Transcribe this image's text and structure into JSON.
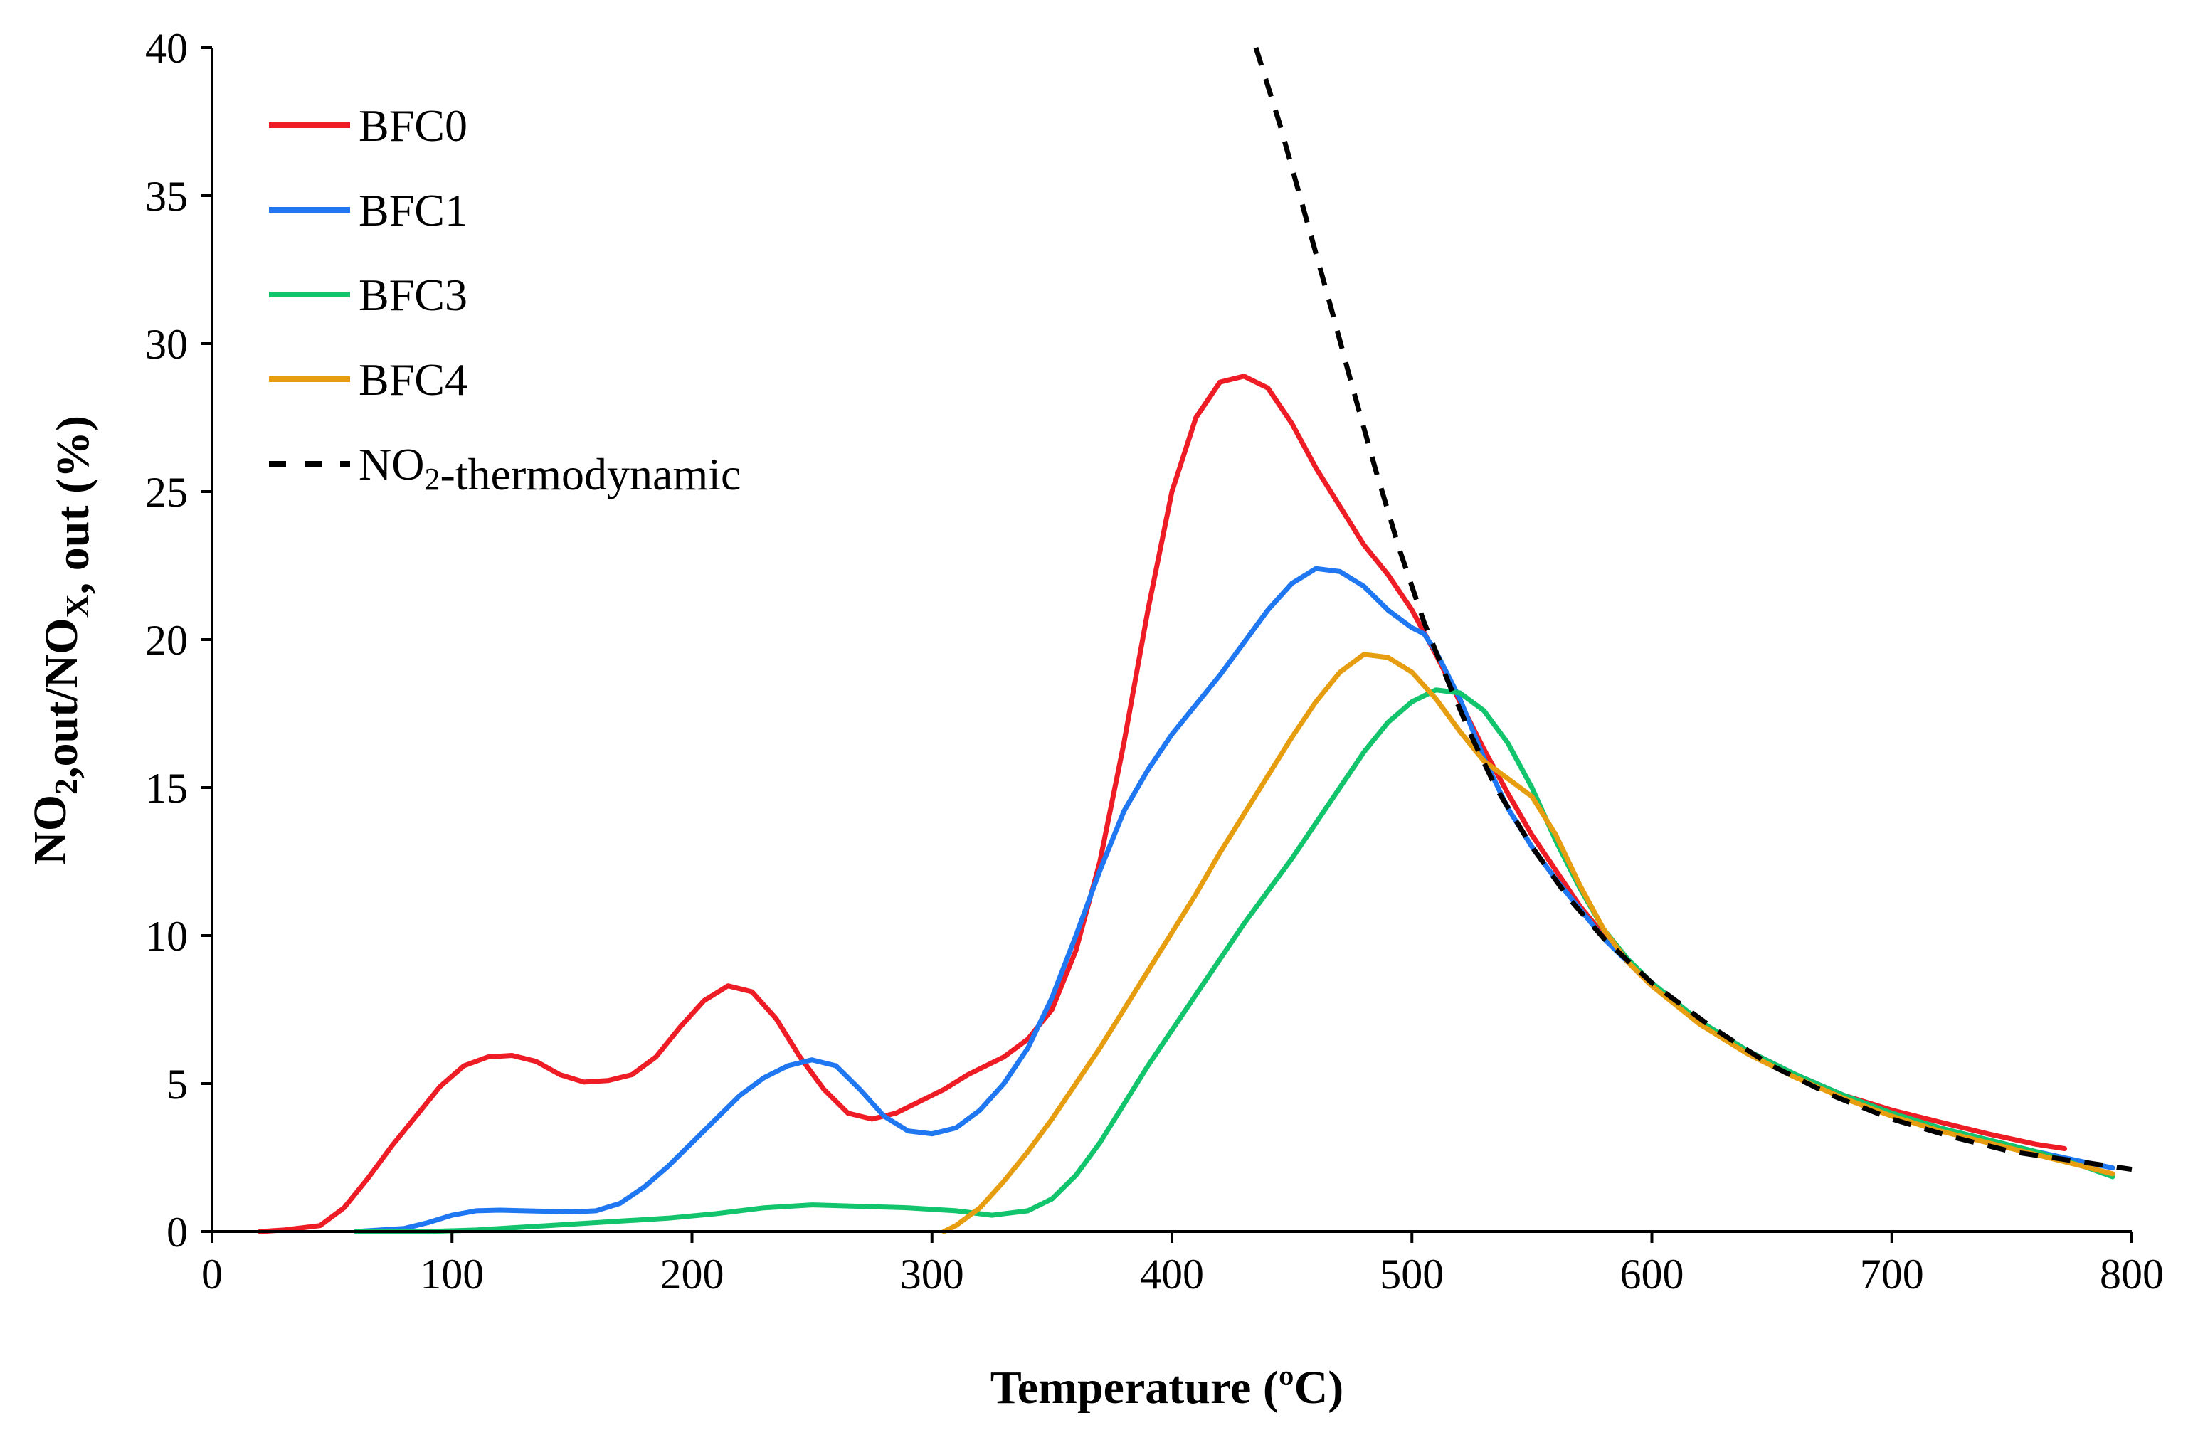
{
  "chart_data": {
    "type": "line",
    "title": "",
    "xlabel": "Temperature (ºC)",
    "ylabel": {
      "parts": [
        {
          "text": "NO",
          "sub": false
        },
        {
          "text": "2",
          "sub": true
        },
        {
          "text": ",out/NO",
          "sub": false
        },
        {
          "text": "X",
          "sub": true
        },
        {
          "text": ", out (%)",
          "sub": false
        }
      ]
    },
    "xlim": [
      0,
      800
    ],
    "ylim": [
      0,
      40
    ],
    "xticks": [
      "0",
      "100",
      "200",
      "300",
      "400",
      "500",
      "600",
      "700",
      "800"
    ],
    "yticks": [
      "0",
      "5",
      "10",
      "15",
      "20",
      "25",
      "30",
      "35",
      "40"
    ],
    "grid": false,
    "legend_position": "top-left",
    "series": [
      {
        "name": "BFC0",
        "label_parts": [
          {
            "text": "BFC0",
            "sub": false
          }
        ],
        "color": "#ee1c25",
        "dash": "solid",
        "points": [
          [
            20,
            0
          ],
          [
            30,
            0.05
          ],
          [
            45,
            0.2
          ],
          [
            55,
            0.8
          ],
          [
            65,
            1.8
          ],
          [
            75,
            2.9
          ],
          [
            85,
            3.9
          ],
          [
            95,
            4.9
          ],
          [
            105,
            5.6
          ],
          [
            115,
            5.9
          ],
          [
            125,
            5.95
          ],
          [
            135,
            5.75
          ],
          [
            145,
            5.3
          ],
          [
            155,
            5.05
          ],
          [
            165,
            5.1
          ],
          [
            175,
            5.3
          ],
          [
            185,
            5.9
          ],
          [
            195,
            6.9
          ],
          [
            205,
            7.8
          ],
          [
            215,
            8.3
          ],
          [
            225,
            8.1
          ],
          [
            235,
            7.2
          ],
          [
            245,
            5.9
          ],
          [
            255,
            4.8
          ],
          [
            265,
            4.0
          ],
          [
            275,
            3.8
          ],
          [
            285,
            4.0
          ],
          [
            295,
            4.4
          ],
          [
            305,
            4.8
          ],
          [
            315,
            5.3
          ],
          [
            330,
            5.9
          ],
          [
            340,
            6.5
          ],
          [
            350,
            7.5
          ],
          [
            360,
            9.5
          ],
          [
            370,
            12.5
          ],
          [
            380,
            16.5
          ],
          [
            390,
            21.0
          ],
          [
            400,
            25.0
          ],
          [
            410,
            27.5
          ],
          [
            420,
            28.7
          ],
          [
            430,
            28.9
          ],
          [
            440,
            28.5
          ],
          [
            450,
            27.3
          ],
          [
            460,
            25.8
          ],
          [
            470,
            24.5
          ],
          [
            480,
            23.2
          ],
          [
            490,
            22.2
          ],
          [
            500,
            21.0
          ],
          [
            510,
            19.5
          ],
          [
            520,
            17.9
          ],
          [
            530,
            16.3
          ],
          [
            540,
            14.8
          ],
          [
            550,
            13.4
          ],
          [
            560,
            12.2
          ],
          [
            570,
            11.0
          ],
          [
            580,
            10.0
          ],
          [
            590,
            9.1
          ],
          [
            600,
            8.3
          ],
          [
            620,
            7.1
          ],
          [
            640,
            6.1
          ],
          [
            660,
            5.3
          ],
          [
            680,
            4.6
          ],
          [
            700,
            4.1
          ],
          [
            720,
            3.7
          ],
          [
            740,
            3.3
          ],
          [
            760,
            2.95
          ],
          [
            772,
            2.8
          ]
        ]
      },
      {
        "name": "BFC1",
        "label_parts": [
          {
            "text": "BFC1",
            "sub": false
          }
        ],
        "color": "#1f77f2",
        "dash": "solid",
        "points": [
          [
            60,
            0
          ],
          [
            80,
            0.1
          ],
          [
            90,
            0.3
          ],
          [
            100,
            0.55
          ],
          [
            110,
            0.7
          ],
          [
            120,
            0.72
          ],
          [
            130,
            0.7
          ],
          [
            140,
            0.68
          ],
          [
            150,
            0.66
          ],
          [
            160,
            0.7
          ],
          [
            170,
            0.95
          ],
          [
            180,
            1.5
          ],
          [
            190,
            2.2
          ],
          [
            200,
            3.0
          ],
          [
            210,
            3.8
          ],
          [
            220,
            4.6
          ],
          [
            230,
            5.2
          ],
          [
            240,
            5.6
          ],
          [
            250,
            5.8
          ],
          [
            260,
            5.6
          ],
          [
            270,
            4.8
          ],
          [
            280,
            3.9
          ],
          [
            290,
            3.4
          ],
          [
            300,
            3.3
          ],
          [
            310,
            3.5
          ],
          [
            320,
            4.1
          ],
          [
            330,
            5.0
          ],
          [
            340,
            6.2
          ],
          [
            350,
            7.9
          ],
          [
            360,
            10.0
          ],
          [
            370,
            12.2
          ],
          [
            380,
            14.2
          ],
          [
            390,
            15.6
          ],
          [
            400,
            16.8
          ],
          [
            410,
            17.8
          ],
          [
            420,
            18.8
          ],
          [
            430,
            19.9
          ],
          [
            440,
            21.0
          ],
          [
            450,
            21.9
          ],
          [
            460,
            22.4
          ],
          [
            470,
            22.3
          ],
          [
            480,
            21.8
          ],
          [
            490,
            21.0
          ],
          [
            500,
            20.4
          ],
          [
            505,
            20.2
          ],
          [
            510,
            19.6
          ],
          [
            520,
            18.0
          ],
          [
            530,
            16.0
          ],
          [
            540,
            14.3
          ],
          [
            550,
            13.0
          ],
          [
            560,
            11.9
          ],
          [
            570,
            10.9
          ],
          [
            580,
            9.9
          ],
          [
            590,
            9.1
          ],
          [
            600,
            8.4
          ],
          [
            620,
            7.1
          ],
          [
            640,
            6.1
          ],
          [
            660,
            5.3
          ],
          [
            680,
            4.6
          ],
          [
            700,
            4.0
          ],
          [
            720,
            3.5
          ],
          [
            740,
            3.1
          ],
          [
            760,
            2.7
          ],
          [
            780,
            2.35
          ],
          [
            792,
            2.15
          ]
        ]
      },
      {
        "name": "BFC3",
        "label_parts": [
          {
            "text": "BFC3",
            "sub": false
          }
        ],
        "color": "#12c46b",
        "dash": "solid",
        "points": [
          [
            60,
            0
          ],
          [
            90,
            0.0
          ],
          [
            110,
            0.05
          ],
          [
            130,
            0.15
          ],
          [
            150,
            0.25
          ],
          [
            170,
            0.35
          ],
          [
            190,
            0.45
          ],
          [
            210,
            0.6
          ],
          [
            230,
            0.8
          ],
          [
            250,
            0.9
          ],
          [
            270,
            0.85
          ],
          [
            290,
            0.8
          ],
          [
            310,
            0.7
          ],
          [
            325,
            0.55
          ],
          [
            340,
            0.7
          ],
          [
            350,
            1.1
          ],
          [
            360,
            1.9
          ],
          [
            370,
            3.0
          ],
          [
            380,
            4.3
          ],
          [
            390,
            5.6
          ],
          [
            400,
            6.8
          ],
          [
            410,
            8.0
          ],
          [
            420,
            9.2
          ],
          [
            430,
            10.4
          ],
          [
            440,
            11.5
          ],
          [
            450,
            12.6
          ],
          [
            460,
            13.8
          ],
          [
            470,
            15.0
          ],
          [
            480,
            16.2
          ],
          [
            490,
            17.2
          ],
          [
            500,
            17.9
          ],
          [
            510,
            18.3
          ],
          [
            520,
            18.2
          ],
          [
            530,
            17.6
          ],
          [
            540,
            16.5
          ],
          [
            550,
            15.0
          ],
          [
            560,
            13.2
          ],
          [
            570,
            11.6
          ],
          [
            580,
            10.2
          ],
          [
            590,
            9.2
          ],
          [
            600,
            8.4
          ],
          [
            620,
            7.1
          ],
          [
            640,
            6.1
          ],
          [
            660,
            5.3
          ],
          [
            680,
            4.6
          ],
          [
            700,
            4.0
          ],
          [
            720,
            3.5
          ],
          [
            740,
            3.1
          ],
          [
            760,
            2.7
          ],
          [
            780,
            2.2
          ],
          [
            792,
            1.85
          ]
        ]
      },
      {
        "name": "BFC4",
        "label_parts": [
          {
            "text": "BFC4",
            "sub": false
          }
        ],
        "color": "#e69e10",
        "dash": "solid",
        "points": [
          [
            305,
            0
          ],
          [
            310,
            0.2
          ],
          [
            320,
            0.8
          ],
          [
            330,
            1.7
          ],
          [
            340,
            2.7
          ],
          [
            350,
            3.8
          ],
          [
            360,
            5.0
          ],
          [
            370,
            6.2
          ],
          [
            380,
            7.5
          ],
          [
            390,
            8.8
          ],
          [
            400,
            10.1
          ],
          [
            410,
            11.4
          ],
          [
            420,
            12.8
          ],
          [
            430,
            14.1
          ],
          [
            440,
            15.4
          ],
          [
            450,
            16.7
          ],
          [
            460,
            17.9
          ],
          [
            470,
            18.9
          ],
          [
            480,
            19.5
          ],
          [
            490,
            19.4
          ],
          [
            500,
            18.9
          ],
          [
            510,
            18.0
          ],
          [
            520,
            16.9
          ],
          [
            530,
            15.9
          ],
          [
            540,
            15.3
          ],
          [
            550,
            14.7
          ],
          [
            560,
            13.4
          ],
          [
            570,
            11.7
          ],
          [
            580,
            10.2
          ],
          [
            590,
            9.1
          ],
          [
            600,
            8.3
          ],
          [
            620,
            7.0
          ],
          [
            640,
            6.0
          ],
          [
            660,
            5.2
          ],
          [
            680,
            4.5
          ],
          [
            700,
            3.9
          ],
          [
            720,
            3.4
          ],
          [
            740,
            3.0
          ],
          [
            760,
            2.6
          ],
          [
            780,
            2.2
          ],
          [
            792,
            1.95
          ]
        ]
      },
      {
        "name": "NO2-thermodynamic",
        "label_parts": [
          {
            "text": "NO",
            "sub": false
          },
          {
            "text": "2",
            "sub": true
          },
          {
            "text": "-thermodynamic",
            "sub": false
          }
        ],
        "color": "#000000",
        "dash": "dashed",
        "points": [
          [
            435,
            40
          ],
          [
            445,
            37.4
          ],
          [
            455,
            34.5
          ],
          [
            465,
            31.6
          ],
          [
            475,
            28.6
          ],
          [
            485,
            25.7
          ],
          [
            495,
            23.0
          ],
          [
            505,
            20.6
          ],
          [
            515,
            18.6
          ],
          [
            525,
            16.7
          ],
          [
            535,
            15.0
          ],
          [
            550,
            13.0
          ],
          [
            565,
            11.3
          ],
          [
            580,
            9.9
          ],
          [
            600,
            8.4
          ],
          [
            625,
            6.9
          ],
          [
            650,
            5.6
          ],
          [
            675,
            4.6
          ],
          [
            700,
            3.8
          ],
          [
            725,
            3.2
          ],
          [
            750,
            2.7
          ],
          [
            775,
            2.4
          ],
          [
            800,
            2.1
          ]
        ]
      }
    ]
  }
}
